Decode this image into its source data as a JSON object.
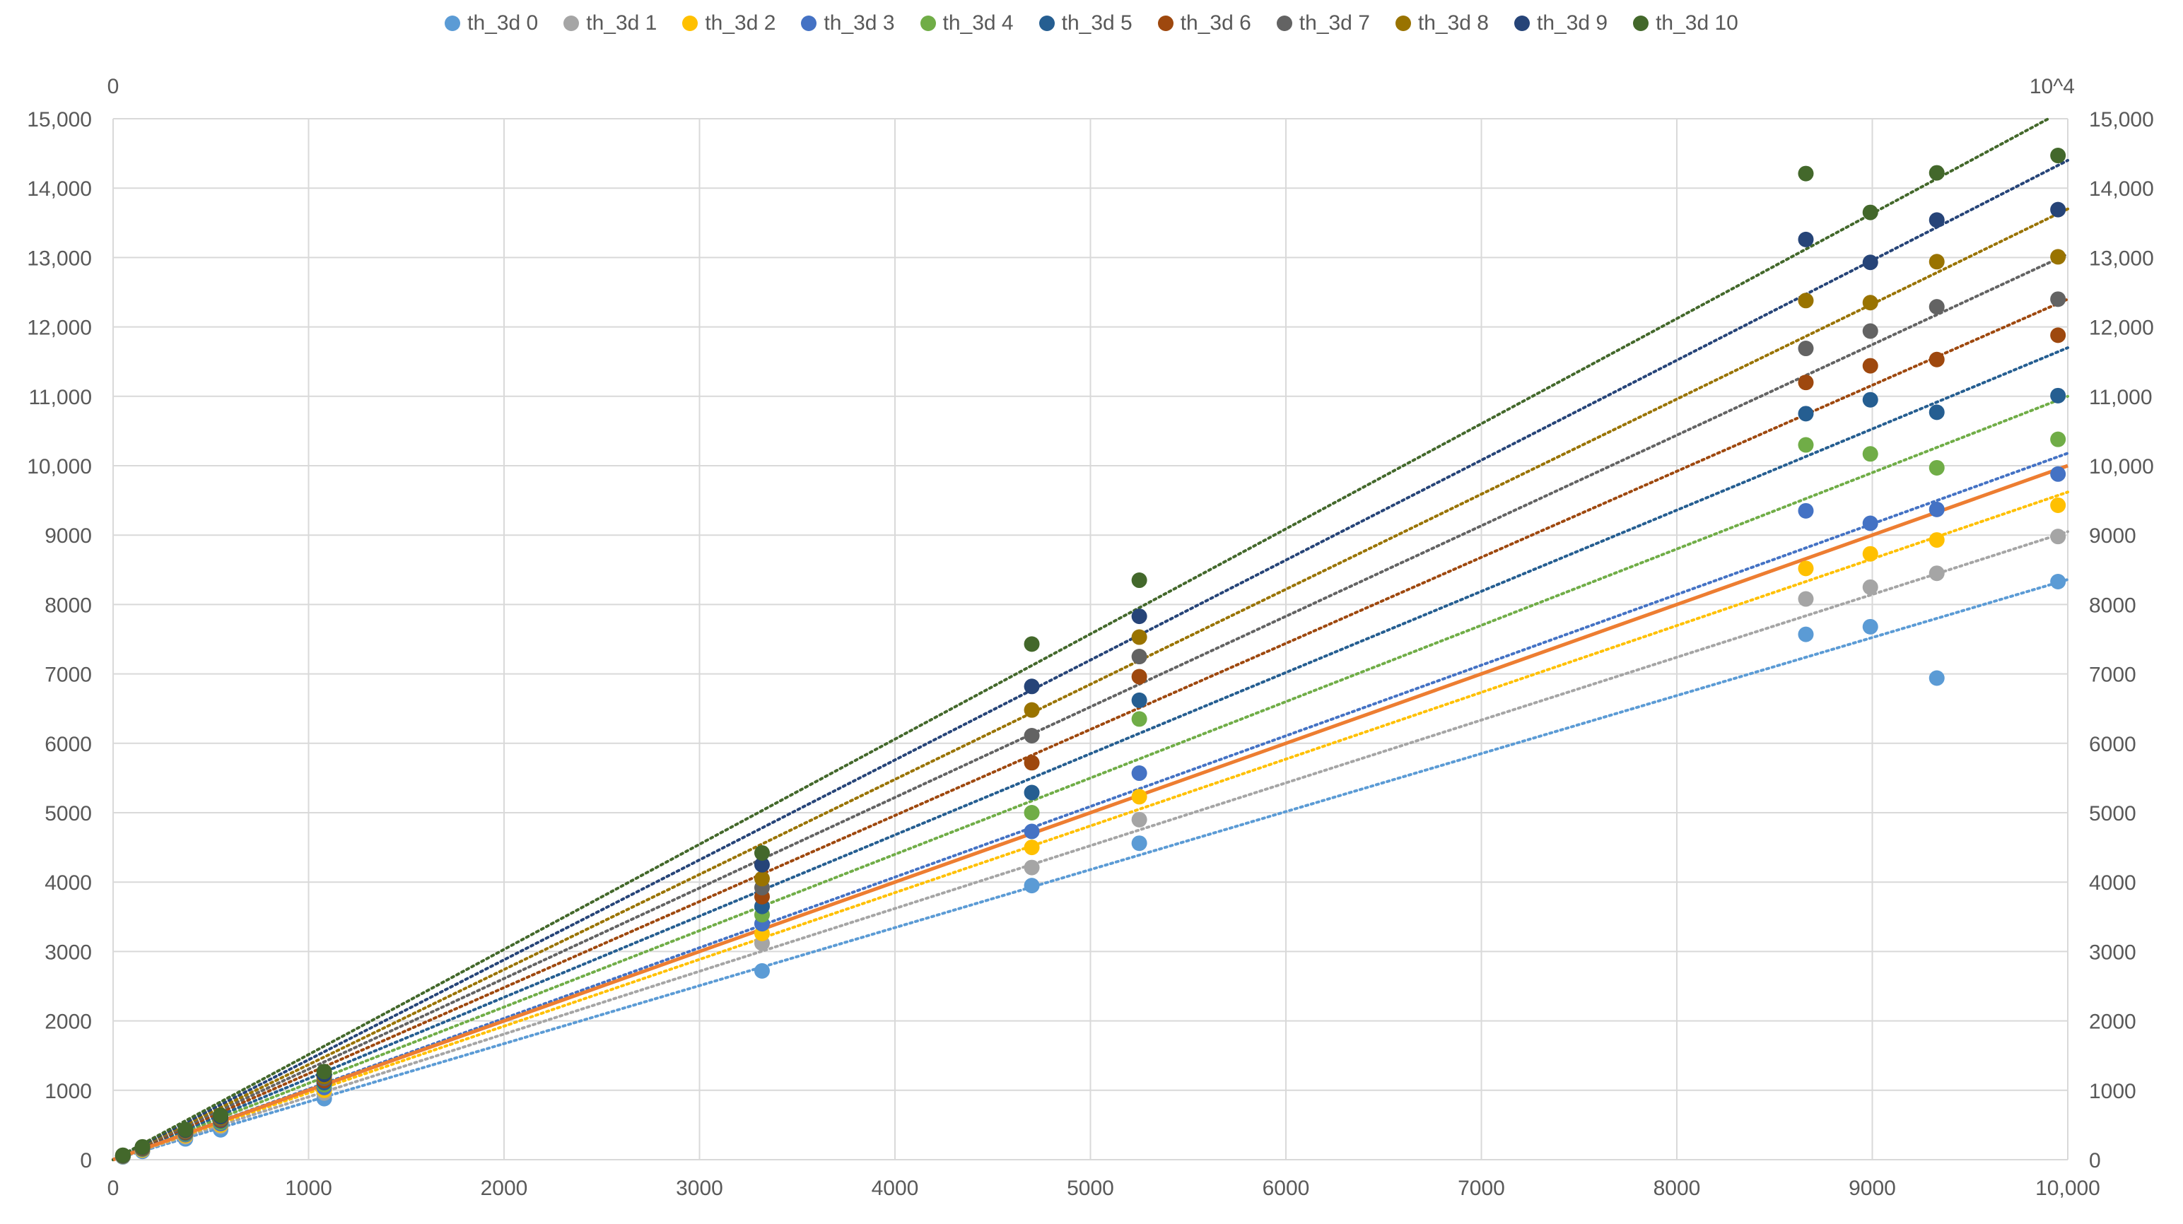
{
  "chart_data": {
    "type": "scatter",
    "title": "",
    "xlabel": "",
    "ylabel": "",
    "x_range": [
      0,
      10000
    ],
    "y_range": [
      0,
      15000
    ],
    "secondary_axis": {
      "left_top_label": "0",
      "right_top_label": "10^4"
    },
    "x_tick_labels": [
      "0",
      "1000",
      "2000",
      "3000",
      "4000",
      "5000",
      "6000",
      "7000",
      "8000",
      "9000",
      "10,000"
    ],
    "y_tick_labels_left": [
      "0",
      "1000",
      "2000",
      "3000",
      "4000",
      "5000",
      "6000",
      "7000",
      "8000",
      "9000",
      "10,000",
      "11,000",
      "12,000",
      "13,000",
      "14,000",
      "15,000"
    ],
    "y_tick_labels_right": [
      "0",
      "1000",
      "2000",
      "3000",
      "4000",
      "5000",
      "6000",
      "7000",
      "8000",
      "9000",
      "10,000",
      "11,000",
      "12,000",
      "13,000",
      "14,000",
      "15,000"
    ],
    "grid": true,
    "legend_position": "top",
    "x": [
      50,
      150,
      370,
      550,
      1080,
      3320,
      4700,
      5250,
      8660,
      8990,
      9330,
      9950
    ],
    "series": [
      {
        "name": "th_3d 0",
        "color": "#5B9BD5",
        "values": [
          40,
          120,
          300,
          430,
          880,
          2720,
          3950,
          4560,
          7570,
          7680,
          6940,
          8330
        ]
      },
      {
        "name": "th_3d 1",
        "color": "#A5A5A5",
        "values": [
          45,
          135,
          330,
          480,
          960,
          3120,
          4210,
          4900,
          8080,
          8250,
          8450,
          8980
        ]
      },
      {
        "name": "th_3d 2",
        "color": "#FFC000",
        "values": [
          48,
          140,
          345,
          500,
          1000,
          3260,
          4500,
          5230,
          8520,
          8730,
          8930,
          9430
        ]
      },
      {
        "name": "th_3d 3",
        "color": "#4472C4",
        "values": [
          50,
          150,
          360,
          520,
          1040,
          3400,
          4730,
          5570,
          9350,
          9170,
          9370,
          9880
        ]
      },
      {
        "name": "th_3d 4",
        "color": "#70AD47",
        "values": [
          52,
          155,
          375,
          540,
          1080,
          3530,
          5000,
          6350,
          10300,
          10170,
          9970,
          10380
        ]
      },
      {
        "name": "th_3d 5",
        "color": "#255E91",
        "values": [
          54,
          160,
          385,
          560,
          1110,
          3650,
          5290,
          6620,
          10750,
          10950,
          10770,
          11010
        ]
      },
      {
        "name": "th_3d 6",
        "color": "#9E480E",
        "values": [
          56,
          165,
          395,
          575,
          1140,
          3790,
          5720,
          6960,
          11200,
          11440,
          11530,
          11880
        ]
      },
      {
        "name": "th_3d 7",
        "color": "#636363",
        "values": [
          58,
          170,
          405,
          590,
          1170,
          3920,
          6110,
          7250,
          11690,
          11940,
          12290,
          12400
        ]
      },
      {
        "name": "th_3d 8",
        "color": "#997300",
        "values": [
          60,
          175,
          415,
          605,
          1200,
          4050,
          6480,
          7530,
          12380,
          12350,
          12940,
          13010
        ]
      },
      {
        "name": "th_3d 9",
        "color": "#264478",
        "values": [
          62,
          180,
          425,
          620,
          1230,
          4250,
          6820,
          7830,
          13260,
          12930,
          13540,
          13690
        ]
      },
      {
        "name": "th_3d 10",
        "color": "#43682B",
        "values": [
          64,
          185,
          435,
          640,
          1270,
          4420,
          7430,
          8350,
          14210,
          13650,
          14220,
          14470
        ]
      }
    ],
    "trendlines": [
      {
        "series": "th_3d 0",
        "slope": 0.836,
        "style": "dotted"
      },
      {
        "series": "th_3d 1",
        "slope": 0.905,
        "style": "dotted"
      },
      {
        "series": "th_3d 2",
        "slope": 0.962,
        "style": "dotted"
      },
      {
        "series": "th_3d 3",
        "slope": 1.018,
        "style": "dotted"
      },
      {
        "series": "th_3d 4",
        "slope": 1.1,
        "style": "dotted"
      },
      {
        "series": "th_3d 5",
        "slope": 1.17,
        "style": "dotted"
      },
      {
        "series": "th_3d 6",
        "slope": 1.24,
        "style": "dotted"
      },
      {
        "series": "th_3d 7",
        "slope": 1.305,
        "style": "dotted"
      },
      {
        "series": "th_3d 8",
        "slope": 1.37,
        "style": "dotted"
      },
      {
        "series": "th_3d 9",
        "slope": 1.44,
        "style": "dotted"
      },
      {
        "series": "th_3d 10",
        "slope": 1.515,
        "style": "dotted"
      }
    ],
    "reference_line": {
      "color": "#ED7D31",
      "slope": 1.0,
      "style": "solid"
    }
  }
}
